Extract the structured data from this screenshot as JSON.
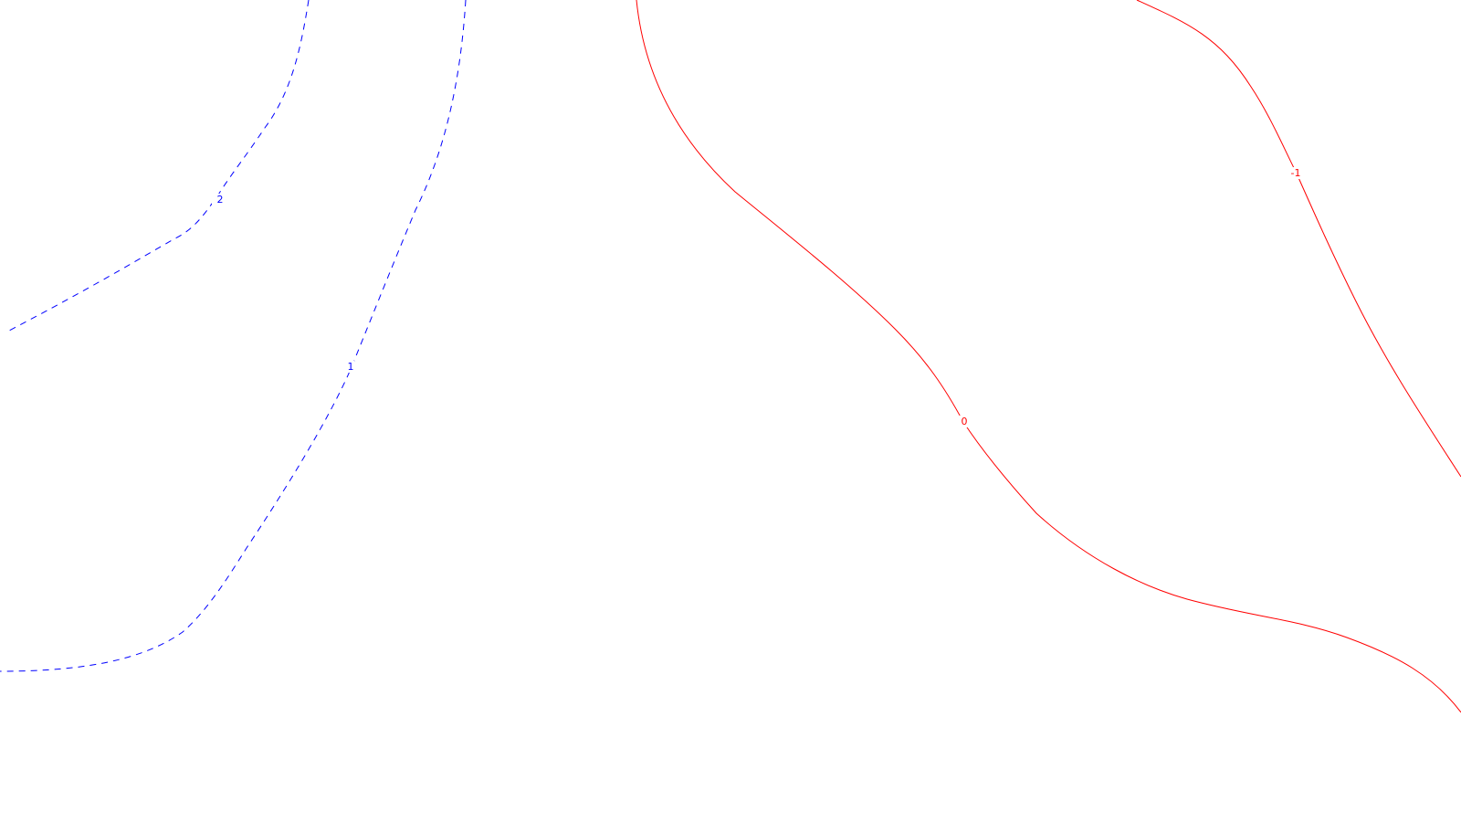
{
  "contours": [
    {
      "level": "2",
      "style": "dashed",
      "color": "#0000ff"
    },
    {
      "level": "1",
      "style": "dashed",
      "color": "#0000ff"
    },
    {
      "level": "0",
      "style": "solid",
      "color": "#ff0000"
    },
    {
      "level": "-1",
      "style": "solid",
      "color": "#ff0000"
    }
  ]
}
